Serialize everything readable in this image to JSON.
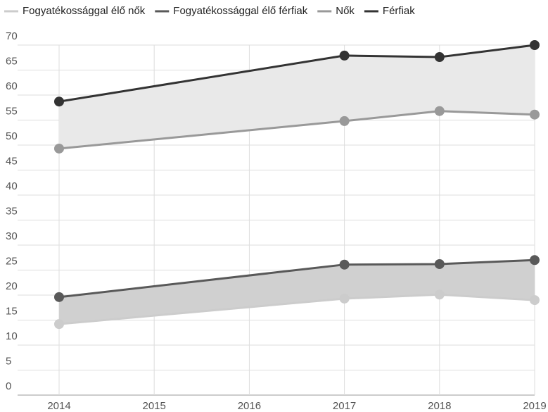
{
  "chart_data": {
    "type": "line",
    "x": [
      2014,
      2017,
      2018,
      2019
    ],
    "series": [
      {
        "name": "Fogyatékossággal élő nők",
        "color": "#cccccc",
        "values": [
          14.2,
          19.3,
          20.1,
          19
        ]
      },
      {
        "name": "Fogyatékossággal élő férfiak",
        "color": "#595959",
        "fill": "#d0d0d0",
        "values": [
          19.6,
          26.1,
          26.2,
          27
        ]
      },
      {
        "name": "Nők",
        "color": "#999999",
        "values": [
          49.3,
          54.8,
          56.8,
          56.1
        ]
      },
      {
        "name": "Férfiak",
        "color": "#333333",
        "fill": "#e9e9e9",
        "values": [
          58.7,
          67.9,
          67.6,
          70
        ]
      }
    ],
    "xlim": [
      2014,
      2019
    ],
    "xticks": [
      2014,
      2015,
      2016,
      2017,
      2018,
      2019
    ],
    "ylim": [
      0,
      70
    ],
    "yticks": [
      0,
      5,
      10,
      15,
      20,
      25,
      30,
      35,
      40,
      45,
      50,
      55,
      60,
      65,
      70
    ],
    "grid": true,
    "legend": "top"
  }
}
